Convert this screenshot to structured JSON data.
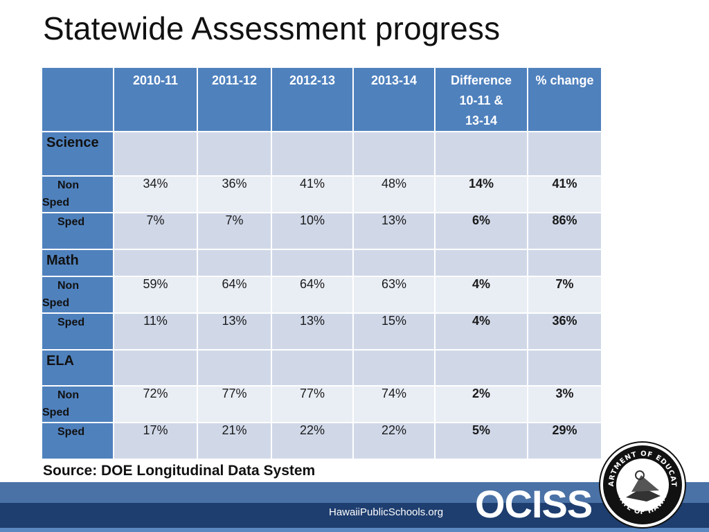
{
  "title": "Statewide Assessment progress",
  "table": {
    "headers": [
      "2010-11",
      "2011-12",
      "2012-13",
      "2013-14",
      "Difference 10-11 & 13-14",
      "% change"
    ],
    "header_lines": {
      "diff": [
        "Difference",
        "10-11 &",
        "13-14"
      ]
    },
    "sections": [
      {
        "subject": "Science",
        "rows": [
          {
            "label_line1": "Non",
            "label_line2": "Sped",
            "values": [
              "34%",
              "36%",
              "41%",
              "48%",
              "14%",
              "41%"
            ]
          },
          {
            "label_line1": "Sped",
            "values": [
              "7%",
              "7%",
              "10%",
              "13%",
              "6%",
              "86%"
            ]
          }
        ]
      },
      {
        "subject": "Math",
        "rows": [
          {
            "label_line1": "Non",
            "label_line2": "Sped",
            "values": [
              "59%",
              "64%",
              "64%",
              "63%",
              "4%",
              "7%"
            ]
          },
          {
            "label_line1": "Sped",
            "values": [
              "11%",
              "13%",
              "13%",
              "15%",
              "4%",
              "36%"
            ]
          }
        ]
      },
      {
        "subject": "ELA",
        "rows": [
          {
            "label_line1": "Non",
            "label_line2": "Sped",
            "values": [
              "72%",
              "77%",
              "77%",
              "74%",
              "2%",
              "3%"
            ]
          },
          {
            "label_line1": "Sped",
            "values": [
              "17%",
              "21%",
              "22%",
              "22%",
              "5%",
              "29%"
            ]
          }
        ]
      }
    ]
  },
  "source": "Source:  DOE Longitudinal Data System",
  "footer": {
    "url": "HawaiiPublicSchools.org",
    "brand": "OCISS",
    "seal_text_top": "DEPARTMENT OF EDUCATION",
    "seal_text_bottom": "STATE OF HAWAII"
  },
  "colors": {
    "header_blue": "#4f81bd",
    "row_dark": "#d0d8e8",
    "row_light": "#e9edf4",
    "footer_navy": "#1e3e6f"
  }
}
